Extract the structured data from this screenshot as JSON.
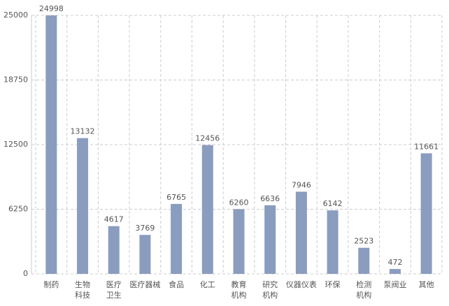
{
  "chart_data": {
    "type": "bar",
    "categories": [
      "制药",
      "生物\n科技",
      "医疗\n卫生",
      "医疗器械",
      "食品",
      "化工",
      "教育\n机构",
      "研究\n机构",
      "仪器仪表",
      "环保",
      "检测\n机构",
      "泵阀业",
      "其他"
    ],
    "values": [
      24998,
      13132,
      4617,
      3769,
      6765,
      12456,
      6260,
      6636,
      7946,
      6142,
      2523,
      472,
      11661
    ],
    "color": "#8a9dbf",
    "ylim": [
      0,
      25000
    ],
    "yticks": [
      0,
      6250,
      12500,
      18750,
      25000
    ],
    "grid": true
  }
}
